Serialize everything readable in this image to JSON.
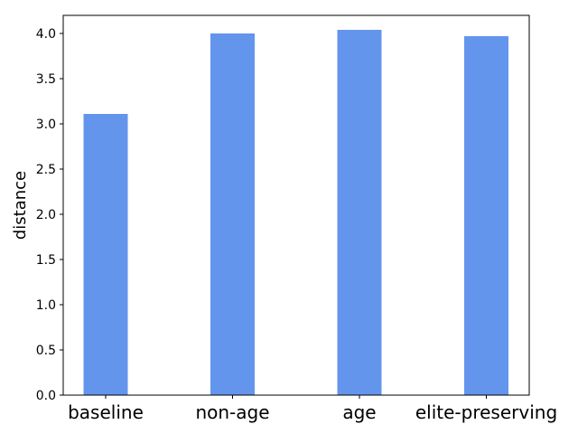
{
  "chart_data": {
    "type": "bar",
    "categories": [
      "baseline",
      "non-age",
      "age",
      "elite-preserving"
    ],
    "values": [
      3.11,
      4.0,
      4.04,
      3.97
    ],
    "title": "",
    "xlabel": "",
    "ylabel": "distance",
    "ylim": [
      0,
      4.2
    ],
    "yticks": [
      "0.0",
      "0.5",
      "1.0",
      "1.5",
      "2.0",
      "2.5",
      "3.0",
      "3.5",
      "4.0"
    ],
    "grid": false,
    "bar_color": "#6495ED"
  }
}
